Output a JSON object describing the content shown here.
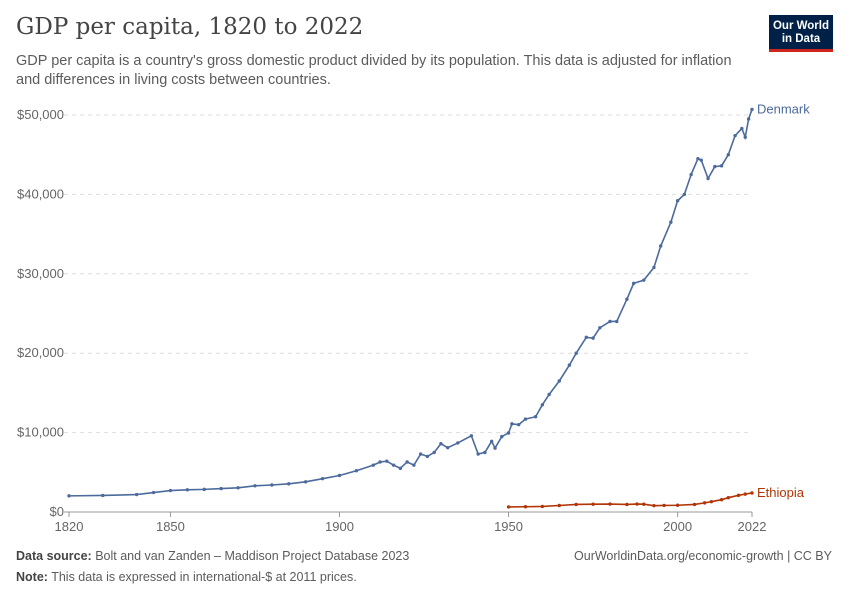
{
  "header": {
    "title": "GDP per capita, 1820 to 2022",
    "subtitle": "GDP per capita is a country's gross domestic product divided by its population. This data is adjusted for inflation and differences in living costs between countries.",
    "logo": "Our World in Data"
  },
  "footer": {
    "source_label": "Data source:",
    "source": "Bolt and van Zanden – Maddison Project Database 2023",
    "url": "OurWorldinData.org/economic-growth | CC BY",
    "note_label": "Note:",
    "note": "This data is expressed in international-$ at 2011 prices."
  },
  "chart_data": {
    "type": "line",
    "title": "GDP per capita, 1820 to 2022",
    "xlim": [
      1820,
      2022
    ],
    "ylim": [
      0,
      50000
    ],
    "grid": "horizontal dashed",
    "x_ticks": [
      1820,
      1850,
      1900,
      1950,
      2000,
      2022
    ],
    "y_ticks": [
      {
        "v": 0,
        "label": "$0"
      },
      {
        "v": 10000,
        "label": "$10,000"
      },
      {
        "v": 20000,
        "label": "$20,000"
      },
      {
        "v": 30000,
        "label": "$30,000"
      },
      {
        "v": 40000,
        "label": "$40,000"
      },
      {
        "v": 50000,
        "label": "$50,000"
      }
    ],
    "legend": "end-of-line labels",
    "series": [
      {
        "name": "Denmark",
        "color": "#4c6a9c",
        "points": [
          [
            1820,
            2030
          ],
          [
            1830,
            2080
          ],
          [
            1840,
            2200
          ],
          [
            1845,
            2450
          ],
          [
            1850,
            2700
          ],
          [
            1855,
            2800
          ],
          [
            1860,
            2850
          ],
          [
            1865,
            2950
          ],
          [
            1870,
            3050
          ],
          [
            1875,
            3300
          ],
          [
            1880,
            3400
          ],
          [
            1885,
            3550
          ],
          [
            1890,
            3800
          ],
          [
            1895,
            4200
          ],
          [
            1900,
            4600
          ],
          [
            1905,
            5200
          ],
          [
            1910,
            5900
          ],
          [
            1912,
            6300
          ],
          [
            1914,
            6400
          ],
          [
            1916,
            5900
          ],
          [
            1918,
            5500
          ],
          [
            1920,
            6300
          ],
          [
            1922,
            5900
          ],
          [
            1924,
            7300
          ],
          [
            1926,
            7000
          ],
          [
            1928,
            7500
          ],
          [
            1930,
            8600
          ],
          [
            1932,
            8100
          ],
          [
            1935,
            8700
          ],
          [
            1939,
            9600
          ],
          [
            1941,
            7300
          ],
          [
            1943,
            7500
          ],
          [
            1945,
            8900
          ],
          [
            1946,
            8050
          ],
          [
            1948,
            9500
          ],
          [
            1950,
            9950
          ],
          [
            1951,
            11100
          ],
          [
            1953,
            11000
          ],
          [
            1955,
            11700
          ],
          [
            1958,
            12000
          ],
          [
            1960,
            13500
          ],
          [
            1962,
            14800
          ],
          [
            1965,
            16500
          ],
          [
            1968,
            18500
          ],
          [
            1970,
            20000
          ],
          [
            1973,
            22000
          ],
          [
            1975,
            21900
          ],
          [
            1977,
            23200
          ],
          [
            1980,
            24000
          ],
          [
            1982,
            24000
          ],
          [
            1985,
            26800
          ],
          [
            1987,
            28800
          ],
          [
            1990,
            29200
          ],
          [
            1993,
            30800
          ],
          [
            1995,
            33500
          ],
          [
            1998,
            36500
          ],
          [
            2000,
            39200
          ],
          [
            2002,
            40000
          ],
          [
            2004,
            42500
          ],
          [
            2006,
            44500
          ],
          [
            2007,
            44300
          ],
          [
            2009,
            42000
          ],
          [
            2011,
            43500
          ],
          [
            2013,
            43600
          ],
          [
            2015,
            45000
          ],
          [
            2017,
            47400
          ],
          [
            2019,
            48300
          ],
          [
            2020,
            47200
          ],
          [
            2021,
            49500
          ],
          [
            2022,
            50700
          ]
        ]
      },
      {
        "name": "Ethiopia",
        "color": "#b13507",
        "points": [
          [
            1950,
            640
          ],
          [
            1955,
            660
          ],
          [
            1960,
            700
          ],
          [
            1965,
            820
          ],
          [
            1970,
            950
          ],
          [
            1975,
            980
          ],
          [
            1980,
            1000
          ],
          [
            1985,
            950
          ],
          [
            1988,
            1000
          ],
          [
            1990,
            980
          ],
          [
            1993,
            800
          ],
          [
            1996,
            830
          ],
          [
            2000,
            850
          ],
          [
            2005,
            950
          ],
          [
            2008,
            1150
          ],
          [
            2010,
            1300
          ],
          [
            2013,
            1550
          ],
          [
            2015,
            1800
          ],
          [
            2018,
            2100
          ],
          [
            2020,
            2250
          ],
          [
            2022,
            2400
          ]
        ]
      }
    ]
  }
}
